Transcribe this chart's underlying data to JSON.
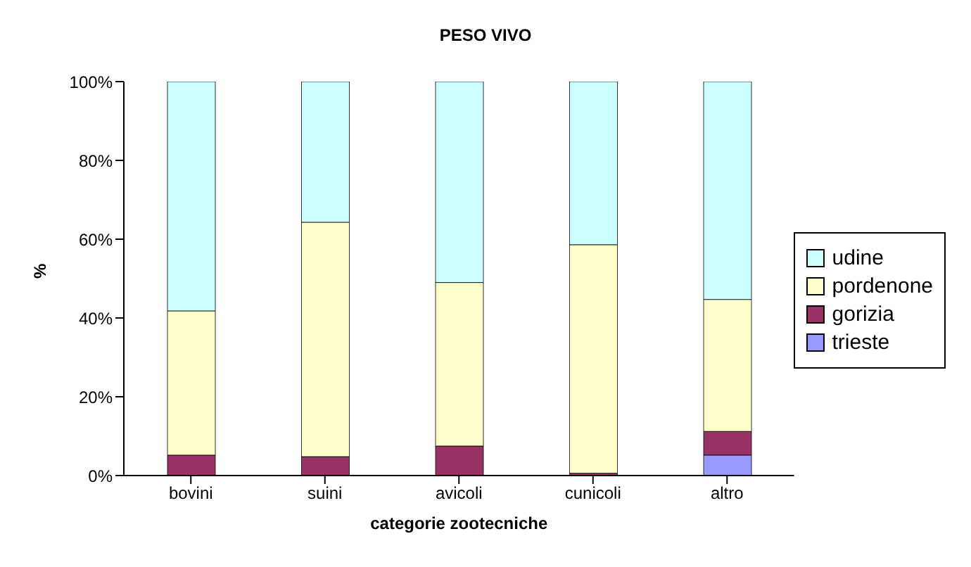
{
  "chart_data": {
    "type": "bar",
    "title": "PESO VIVO",
    "xlabel": "categorie zootecniche",
    "ylabel": "%",
    "stacked": true,
    "categories": [
      "bovini",
      "suini",
      "avicoli",
      "cunicoli",
      "altro"
    ],
    "series": [
      {
        "name": "trieste",
        "color": "#9999ff",
        "values": [
          null,
          null,
          0,
          0,
          5.2
        ]
      },
      {
        "name": "gorizia",
        "color": "#993366",
        "values": [
          5.2,
          4.8,
          7.5,
          0.6,
          6
        ]
      },
      {
        "name": "pordenone",
        "color": "#ffffcc",
        "values": [
          36.6,
          59.5,
          41.5,
          58,
          33.5
        ]
      },
      {
        "name": "udine",
        "color": "#ccffff",
        "values": [
          58.2,
          35.7,
          51,
          41.4,
          55.3
        ]
      }
    ],
    "ylim": [
      0,
      100
    ],
    "yticks": [
      {
        "value": 0,
        "label": "0%"
      },
      {
        "value": 20,
        "label": "20%"
      },
      {
        "value": 40,
        "label": "40%"
      },
      {
        "value": 60,
        "label": "60%"
      },
      {
        "value": 80,
        "label": "80%"
      },
      {
        "value": 100,
        "label": "100%"
      }
    ],
    "grid": false,
    "legend": "right"
  }
}
